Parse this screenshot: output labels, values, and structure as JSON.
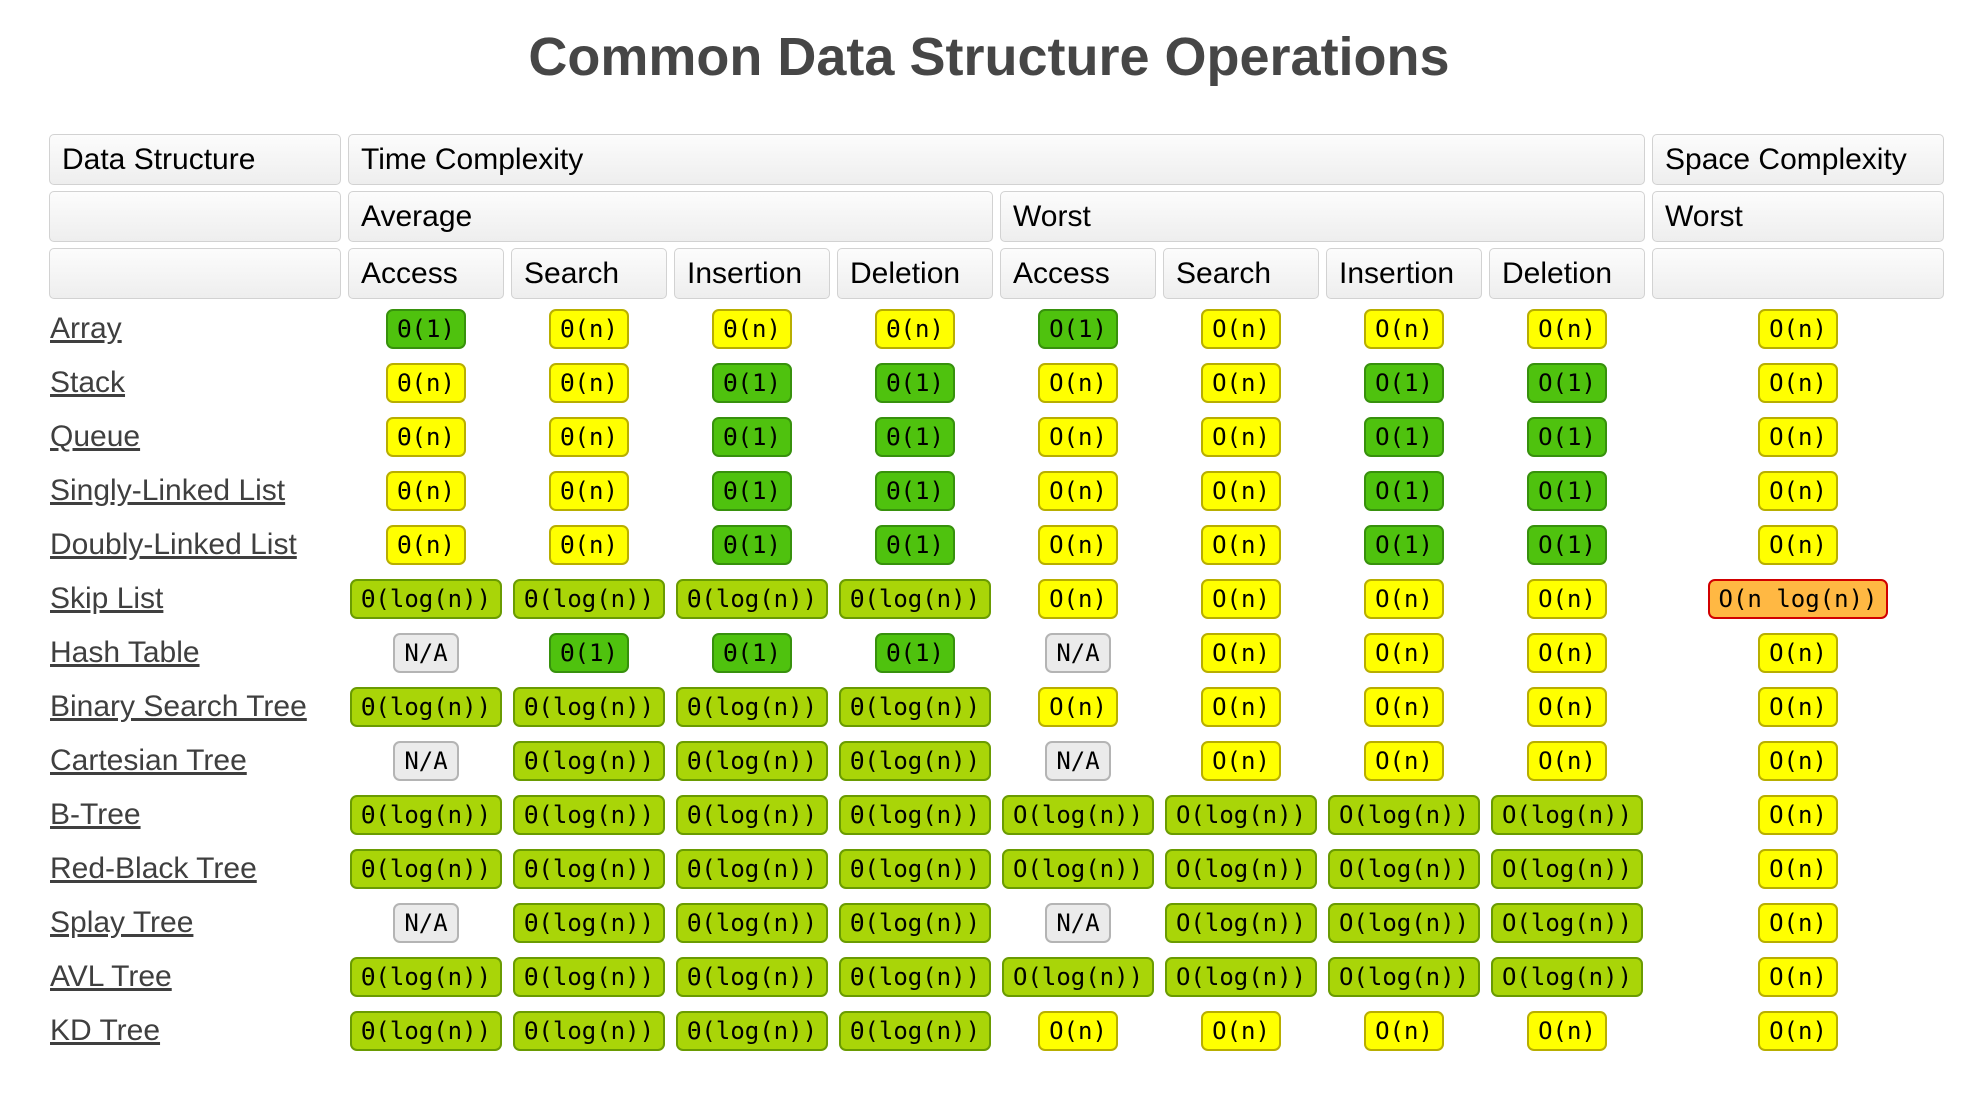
{
  "title": "Common Data Structure Operations",
  "colors": {
    "title_color": "#464646",
    "label_color": "#3f3f3f",
    "green_bg": "#4fc20e",
    "green_border": "#37910c",
    "lightgreen_bg": "#a9d508",
    "lightgreen_border": "#6a9b01",
    "yellow_bg": "#ffff00",
    "yellow_border": "#b8ae00",
    "orange_bg": "#ffb843",
    "orange_border": "#d10000",
    "gray_bg": "#ebebeb",
    "gray_border": "#b4b4b4"
  },
  "header": {
    "data_structure": "Data Structure",
    "time_complexity": "Time Complexity",
    "space_complexity": "Space Complexity",
    "average": "Average",
    "worst": "Worst",
    "space_worst": "Worst",
    "avg_ops": [
      "Access",
      "Search",
      "Insertion",
      "Deletion"
    ],
    "worst_ops": [
      "Access",
      "Search",
      "Insertion",
      "Deletion"
    ]
  },
  "rows": [
    {
      "name": "Array",
      "cells": [
        {
          "t": "Θ(1)",
          "c": "green"
        },
        {
          "t": "Θ(n)",
          "c": "yellow"
        },
        {
          "t": "Θ(n)",
          "c": "yellow"
        },
        {
          "t": "Θ(n)",
          "c": "yellow"
        },
        {
          "t": "O(1)",
          "c": "green"
        },
        {
          "t": "O(n)",
          "c": "yellow"
        },
        {
          "t": "O(n)",
          "c": "yellow"
        },
        {
          "t": "O(n)",
          "c": "yellow"
        },
        {
          "t": "O(n)",
          "c": "yellow"
        }
      ]
    },
    {
      "name": "Stack",
      "cells": [
        {
          "t": "Θ(n)",
          "c": "yellow"
        },
        {
          "t": "Θ(n)",
          "c": "yellow"
        },
        {
          "t": "Θ(1)",
          "c": "green"
        },
        {
          "t": "Θ(1)",
          "c": "green"
        },
        {
          "t": "O(n)",
          "c": "yellow"
        },
        {
          "t": "O(n)",
          "c": "yellow"
        },
        {
          "t": "O(1)",
          "c": "green"
        },
        {
          "t": "O(1)",
          "c": "green"
        },
        {
          "t": "O(n)",
          "c": "yellow"
        }
      ]
    },
    {
      "name": "Queue",
      "cells": [
        {
          "t": "Θ(n)",
          "c": "yellow"
        },
        {
          "t": "Θ(n)",
          "c": "yellow"
        },
        {
          "t": "Θ(1)",
          "c": "green"
        },
        {
          "t": "Θ(1)",
          "c": "green"
        },
        {
          "t": "O(n)",
          "c": "yellow"
        },
        {
          "t": "O(n)",
          "c": "yellow"
        },
        {
          "t": "O(1)",
          "c": "green"
        },
        {
          "t": "O(1)",
          "c": "green"
        },
        {
          "t": "O(n)",
          "c": "yellow"
        }
      ]
    },
    {
      "name": "Singly-Linked List",
      "cells": [
        {
          "t": "Θ(n)",
          "c": "yellow"
        },
        {
          "t": "Θ(n)",
          "c": "yellow"
        },
        {
          "t": "Θ(1)",
          "c": "green"
        },
        {
          "t": "Θ(1)",
          "c": "green"
        },
        {
          "t": "O(n)",
          "c": "yellow"
        },
        {
          "t": "O(n)",
          "c": "yellow"
        },
        {
          "t": "O(1)",
          "c": "green"
        },
        {
          "t": "O(1)",
          "c": "green"
        },
        {
          "t": "O(n)",
          "c": "yellow"
        }
      ]
    },
    {
      "name": "Doubly-Linked List",
      "cells": [
        {
          "t": "Θ(n)",
          "c": "yellow"
        },
        {
          "t": "Θ(n)",
          "c": "yellow"
        },
        {
          "t": "Θ(1)",
          "c": "green"
        },
        {
          "t": "Θ(1)",
          "c": "green"
        },
        {
          "t": "O(n)",
          "c": "yellow"
        },
        {
          "t": "O(n)",
          "c": "yellow"
        },
        {
          "t": "O(1)",
          "c": "green"
        },
        {
          "t": "O(1)",
          "c": "green"
        },
        {
          "t": "O(n)",
          "c": "yellow"
        }
      ]
    },
    {
      "name": "Skip List",
      "cells": [
        {
          "t": "Θ(log(n))",
          "c": "lightgreen"
        },
        {
          "t": "Θ(log(n))",
          "c": "lightgreen"
        },
        {
          "t": "Θ(log(n))",
          "c": "lightgreen"
        },
        {
          "t": "Θ(log(n))",
          "c": "lightgreen"
        },
        {
          "t": "O(n)",
          "c": "yellow"
        },
        {
          "t": "O(n)",
          "c": "yellow"
        },
        {
          "t": "O(n)",
          "c": "yellow"
        },
        {
          "t": "O(n)",
          "c": "yellow"
        },
        {
          "t": "O(n log(n))",
          "c": "orange"
        }
      ]
    },
    {
      "name": "Hash Table",
      "cells": [
        {
          "t": "N/A",
          "c": "gray"
        },
        {
          "t": "Θ(1)",
          "c": "green"
        },
        {
          "t": "Θ(1)",
          "c": "green"
        },
        {
          "t": "Θ(1)",
          "c": "green"
        },
        {
          "t": "N/A",
          "c": "gray"
        },
        {
          "t": "O(n)",
          "c": "yellow"
        },
        {
          "t": "O(n)",
          "c": "yellow"
        },
        {
          "t": "O(n)",
          "c": "yellow"
        },
        {
          "t": "O(n)",
          "c": "yellow"
        }
      ]
    },
    {
      "name": "Binary Search Tree",
      "cells": [
        {
          "t": "Θ(log(n))",
          "c": "lightgreen"
        },
        {
          "t": "Θ(log(n))",
          "c": "lightgreen"
        },
        {
          "t": "Θ(log(n))",
          "c": "lightgreen"
        },
        {
          "t": "Θ(log(n))",
          "c": "lightgreen"
        },
        {
          "t": "O(n)",
          "c": "yellow"
        },
        {
          "t": "O(n)",
          "c": "yellow"
        },
        {
          "t": "O(n)",
          "c": "yellow"
        },
        {
          "t": "O(n)",
          "c": "yellow"
        },
        {
          "t": "O(n)",
          "c": "yellow"
        }
      ]
    },
    {
      "name": "Cartesian Tree",
      "cells": [
        {
          "t": "N/A",
          "c": "gray"
        },
        {
          "t": "Θ(log(n))",
          "c": "lightgreen"
        },
        {
          "t": "Θ(log(n))",
          "c": "lightgreen"
        },
        {
          "t": "Θ(log(n))",
          "c": "lightgreen"
        },
        {
          "t": "N/A",
          "c": "gray"
        },
        {
          "t": "O(n)",
          "c": "yellow"
        },
        {
          "t": "O(n)",
          "c": "yellow"
        },
        {
          "t": "O(n)",
          "c": "yellow"
        },
        {
          "t": "O(n)",
          "c": "yellow"
        }
      ]
    },
    {
      "name": "B-Tree",
      "cells": [
        {
          "t": "Θ(log(n))",
          "c": "lightgreen"
        },
        {
          "t": "Θ(log(n))",
          "c": "lightgreen"
        },
        {
          "t": "Θ(log(n))",
          "c": "lightgreen"
        },
        {
          "t": "Θ(log(n))",
          "c": "lightgreen"
        },
        {
          "t": "O(log(n))",
          "c": "lightgreen"
        },
        {
          "t": "O(log(n))",
          "c": "lightgreen"
        },
        {
          "t": "O(log(n))",
          "c": "lightgreen"
        },
        {
          "t": "O(log(n))",
          "c": "lightgreen"
        },
        {
          "t": "O(n)",
          "c": "yellow"
        }
      ]
    },
    {
      "name": "Red-Black Tree",
      "cells": [
        {
          "t": "Θ(log(n))",
          "c": "lightgreen"
        },
        {
          "t": "Θ(log(n))",
          "c": "lightgreen"
        },
        {
          "t": "Θ(log(n))",
          "c": "lightgreen"
        },
        {
          "t": "Θ(log(n))",
          "c": "lightgreen"
        },
        {
          "t": "O(log(n))",
          "c": "lightgreen"
        },
        {
          "t": "O(log(n))",
          "c": "lightgreen"
        },
        {
          "t": "O(log(n))",
          "c": "lightgreen"
        },
        {
          "t": "O(log(n))",
          "c": "lightgreen"
        },
        {
          "t": "O(n)",
          "c": "yellow"
        }
      ]
    },
    {
      "name": "Splay Tree",
      "cells": [
        {
          "t": "N/A",
          "c": "gray"
        },
        {
          "t": "Θ(log(n))",
          "c": "lightgreen"
        },
        {
          "t": "Θ(log(n))",
          "c": "lightgreen"
        },
        {
          "t": "Θ(log(n))",
          "c": "lightgreen"
        },
        {
          "t": "N/A",
          "c": "gray"
        },
        {
          "t": "O(log(n))",
          "c": "lightgreen"
        },
        {
          "t": "O(log(n))",
          "c": "lightgreen"
        },
        {
          "t": "O(log(n))",
          "c": "lightgreen"
        },
        {
          "t": "O(n)",
          "c": "yellow"
        }
      ]
    },
    {
      "name": "AVL Tree",
      "cells": [
        {
          "t": "Θ(log(n))",
          "c": "lightgreen"
        },
        {
          "t": "Θ(log(n))",
          "c": "lightgreen"
        },
        {
          "t": "Θ(log(n))",
          "c": "lightgreen"
        },
        {
          "t": "Θ(log(n))",
          "c": "lightgreen"
        },
        {
          "t": "O(log(n))",
          "c": "lightgreen"
        },
        {
          "t": "O(log(n))",
          "c": "lightgreen"
        },
        {
          "t": "O(log(n))",
          "c": "lightgreen"
        },
        {
          "t": "O(log(n))",
          "c": "lightgreen"
        },
        {
          "t": "O(n)",
          "c": "yellow"
        }
      ]
    },
    {
      "name": "KD Tree",
      "cells": [
        {
          "t": "Θ(log(n))",
          "c": "lightgreen"
        },
        {
          "t": "Θ(log(n))",
          "c": "lightgreen"
        },
        {
          "t": "Θ(log(n))",
          "c": "lightgreen"
        },
        {
          "t": "Θ(log(n))",
          "c": "lightgreen"
        },
        {
          "t": "O(n)",
          "c": "yellow"
        },
        {
          "t": "O(n)",
          "c": "yellow"
        },
        {
          "t": "O(n)",
          "c": "yellow"
        },
        {
          "t": "O(n)",
          "c": "yellow"
        },
        {
          "t": "O(n)",
          "c": "yellow"
        }
      ]
    }
  ]
}
